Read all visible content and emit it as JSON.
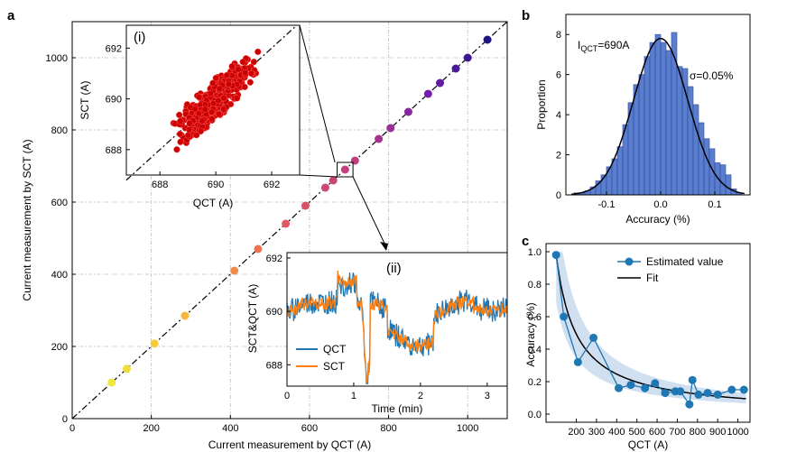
{
  "panel_labels": {
    "a": "a",
    "b": "b",
    "c": "c",
    "i": "(i)",
    "ii": "(ii)"
  },
  "chart_data": [
    {
      "id": "a",
      "type": "scatter",
      "xlabel": "Current measurement by QCT (A)",
      "ylabel": "Current measurement by SCT (A)",
      "xlim": [
        0,
        1100
      ],
      "ylim": [
        0,
        1100
      ],
      "xticks": [
        0,
        200,
        400,
        600,
        800,
        1000
      ],
      "yticks": [
        0,
        200,
        400,
        600,
        800,
        1000
      ],
      "grid": true,
      "reference_line": "y = x (dash-dot)",
      "points": [
        100,
        138,
        208,
        285,
        410,
        470,
        540,
        590,
        640,
        660,
        690,
        715,
        775,
        805,
        850,
        900,
        930,
        970,
        1000,
        1050
      ],
      "colormap": "yellow to dark blue",
      "zoom_box": {
        "x": [
          670,
          710
        ],
        "y": [
          670,
          710
        ]
      }
    },
    {
      "id": "a-inset-i",
      "type": "scatter",
      "xlabel": "QCT (A)",
      "ylabel": "SCT (A)",
      "xlim": [
        686.8,
        693.0
      ],
      "ylim": [
        687.0,
        692.9
      ],
      "xticks": [
        688,
        690,
        692
      ],
      "yticks": [
        688,
        690,
        692
      ],
      "color": "#cc0000",
      "reference_line": "y = x (dash-dot)"
    },
    {
      "id": "a-inset-ii",
      "type": "line",
      "xlabel": "Time (min)",
      "ylabel": "SCT&QCT (A)",
      "xlim": [
        0,
        3.3
      ],
      "ylim": [
        687.2,
        692.2
      ],
      "xticks": [
        0,
        1,
        2,
        3
      ],
      "yticks": [
        688,
        690,
        692
      ],
      "series": [
        {
          "name": "QCT",
          "color": "#1f77b4"
        },
        {
          "name": "SCT",
          "color": "#ff7f0e"
        }
      ],
      "legend": "bottom-left"
    },
    {
      "id": "b",
      "type": "bar",
      "xlabel": "Accuracy (%)",
      "ylabel": "Proportion",
      "xlim": [
        -0.175,
        0.165
      ],
      "ylim": [
        0,
        9
      ],
      "xticks": [
        -0.1,
        0.0,
        0.1
      ],
      "yticks": [
        0,
        2,
        4,
        6,
        8
      ],
      "bin_width": 0.01,
      "bin_starts": [
        -0.17,
        -0.16,
        -0.15,
        -0.14,
        -0.13,
        -0.12,
        -0.11,
        -0.1,
        -0.09,
        -0.08,
        -0.07,
        -0.06,
        -0.05,
        -0.04,
        -0.03,
        -0.02,
        -0.01,
        0.0,
        0.01,
        0.02,
        0.03,
        0.04,
        0.05,
        0.06,
        0.07,
        0.08,
        0.09,
        0.1,
        0.11,
        0.12,
        0.13,
        0.14
      ],
      "values": [
        0.0,
        0.1,
        0.1,
        0.2,
        0.4,
        0.7,
        1.0,
        1.4,
        1.8,
        2.4,
        3.5,
        4.6,
        5.5,
        6.0,
        6.9,
        7.6,
        8.0,
        7.6,
        7.2,
        8.1,
        6.4,
        6.3,
        5.4,
        4.5,
        3.6,
        2.8,
        2.3,
        1.6,
        1.5,
        1.0,
        0.3,
        0.1
      ],
      "fit": {
        "mean": 0.0,
        "sigma": 0.05,
        "peak": 7.8
      },
      "annotation_main": "I",
      "annotation_sub": "QCT",
      "annotation_tail": "=690A",
      "sigma_label": "σ=0.05%"
    },
    {
      "id": "c",
      "type": "line",
      "xlabel": "QCT (A)",
      "ylabel": "Accuracy (%)",
      "xlim": [
        50,
        1060
      ],
      "ylim": [
        -0.05,
        1.05
      ],
      "xticks": [
        200,
        300,
        400,
        500,
        600,
        700,
        800,
        900,
        1000
      ],
      "yticks": [
        0.0,
        0.2,
        0.4,
        0.6,
        0.8,
        1.0
      ],
      "x": [
        100,
        138,
        208,
        285,
        410,
        470,
        540,
        590,
        640,
        690,
        715,
        760,
        775,
        805,
        850,
        900,
        970,
        1030
      ],
      "y": [
        0.98,
        0.6,
        0.32,
        0.47,
        0.16,
        0.18,
        0.16,
        0.19,
        0.13,
        0.14,
        0.14,
        0.06,
        0.21,
        0.12,
        0.13,
        0.12,
        0.15,
        0.15
      ],
      "fit": {
        "a": 98.0,
        "b": 0.999,
        "band_low": 0.7,
        "band_high": 1.35
      },
      "series": [
        {
          "name": "Estimated value",
          "color": "#1f77b4"
        },
        {
          "name": "Fit",
          "color": "#000000"
        }
      ],
      "legend": "top-right"
    }
  ]
}
